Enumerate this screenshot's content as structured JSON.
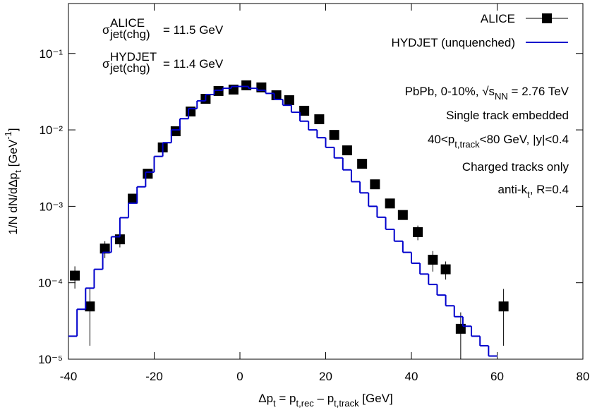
{
  "chart_data": {
    "type": "scatter",
    "yscale": "log",
    "xlim": [
      -40,
      80
    ],
    "xticks": [
      -40,
      -20,
      0,
      20,
      40,
      60,
      80
    ],
    "ylim": [
      1e-05,
      0.45
    ],
    "yticks": [
      {
        "value": 1e-05,
        "label": "10⁻⁵"
      },
      {
        "value": 0.0001,
        "label": "10⁻⁴"
      },
      {
        "value": 0.001,
        "label": "10⁻³"
      },
      {
        "value": 0.01,
        "label": "10⁻²"
      },
      {
        "value": 0.1,
        "label": "10⁻¹"
      }
    ],
    "xlabel": [
      {
        "t": "Δp"
      },
      {
        "t": "t",
        "s": "sub"
      },
      {
        "t": " = p"
      },
      {
        "t": "t,rec",
        "s": "sub"
      },
      {
        "t": " – p"
      },
      {
        "t": "t,track",
        "s": "sub"
      },
      {
        "t": " [GeV]"
      }
    ],
    "ylabel": [
      {
        "t": "1/N dN/dΔp"
      },
      {
        "t": "t",
        "s": "sub"
      },
      {
        "t": " [GeV"
      },
      {
        "t": "-1",
        "s": "sup"
      },
      {
        "t": "]"
      }
    ],
    "sigma_labels": [
      {
        "symbol": "σ",
        "sup": "ALICE",
        "sub": "jet(chg)",
        "text": "= 11.5 GeV"
      },
      {
        "symbol": "σ",
        "sup": "HYDJET",
        "sub": "jet(chg)",
        "text": "= 11.4 GeV"
      }
    ],
    "annotations": [
      [
        {
          "t": "PbPb, 0-10%, √s"
        },
        {
          "t": "NN",
          "s": "sub"
        },
        {
          "t": " = 2.76 TeV"
        }
      ],
      [
        {
          "t": "Single track embedded"
        }
      ],
      [
        {
          "t": "40<p"
        },
        {
          "t": "t,track",
          "s": "sub"
        },
        {
          "t": "<80 GeV, |y|<0.4"
        }
      ],
      [
        {
          "t": "Charged tracks only"
        }
      ],
      [
        {
          "t": "anti-k"
        },
        {
          "t": "t",
          "s": "sub"
        },
        {
          "t": ", R=0.4"
        }
      ]
    ],
    "series": [
      {
        "name": "ALICE",
        "type": "errorbar",
        "color": "#000000",
        "x": [
          -38.5,
          -35,
          -31.5,
          -28,
          -25,
          -21.5,
          -18,
          -15,
          -11.5,
          -8,
          -5,
          -1.5,
          1.5,
          5,
          8.5,
          11.5,
          15,
          18.5,
          22,
          25,
          28.5,
          31.5,
          35,
          38,
          41.5,
          45,
          48,
          51.5,
          61.5
        ],
        "values": [
          0.000124,
          4.9e-05,
          0.00028,
          0.00037,
          0.00126,
          0.00267,
          0.0059,
          0.0096,
          0.0174,
          0.0255,
          0.0323,
          0.0337,
          0.0383,
          0.036,
          0.0284,
          0.0245,
          0.0178,
          0.0138,
          0.0086,
          0.0054,
          0.0036,
          0.00194,
          0.00109,
          0.00077,
          0.00046,
          0.0002,
          0.00015,
          2.5e-05,
          4.9e-05
        ],
        "errors": [
          4e-05,
          3.4e-05,
          7e-05,
          8e-05,
          0.00012,
          0.0002,
          0.0003,
          0.0004,
          0.0006,
          0.0008,
          0.001,
          0.001,
          0.0011,
          0.001,
          0.0009,
          0.0008,
          0.0006,
          0.0005,
          0.0003,
          0.0002,
          0.00015,
          0.0001,
          8e-05,
          7e-05,
          0.0001,
          6e-05,
          4e-05,
          1.6e-05,
          3.4e-05
        ]
      },
      {
        "name": "HYDJET (unquenched)",
        "type": "step",
        "color": "#0000cc",
        "bins": [
          -40,
          -38,
          -36,
          -34,
          -32,
          -30,
          -28,
          -26,
          -24,
          -22,
          -20,
          -18,
          -16,
          -14,
          -12,
          -10,
          -8,
          -6,
          -4,
          -2,
          0,
          2,
          4,
          6,
          8,
          10,
          12,
          14,
          16,
          18,
          20,
          22,
          24,
          26,
          28,
          30,
          32,
          34,
          36,
          38,
          40,
          42,
          44,
          46,
          48,
          50,
          52,
          54,
          56,
          58,
          60
        ],
        "values": [
          2e-05,
          4.5e-05,
          8.5e-05,
          0.00015,
          0.00025,
          0.0004,
          0.00071,
          0.0011,
          0.0018,
          0.0028,
          0.0045,
          0.0068,
          0.01,
          0.014,
          0.019,
          0.024,
          0.029,
          0.033,
          0.035,
          0.037,
          0.037,
          0.035,
          0.033,
          0.03,
          0.025,
          0.021,
          0.017,
          0.013,
          0.01,
          0.0079,
          0.0059,
          0.0043,
          0.003,
          0.0021,
          0.0015,
          0.001,
          0.00072,
          0.0005,
          0.00035,
          0.00025,
          0.00018,
          0.00013,
          9.5e-05,
          6.9e-05,
          5e-05,
          3.6e-05,
          2.7e-05,
          2e-05,
          1.5e-05,
          1.1e-05
        ]
      }
    ]
  }
}
